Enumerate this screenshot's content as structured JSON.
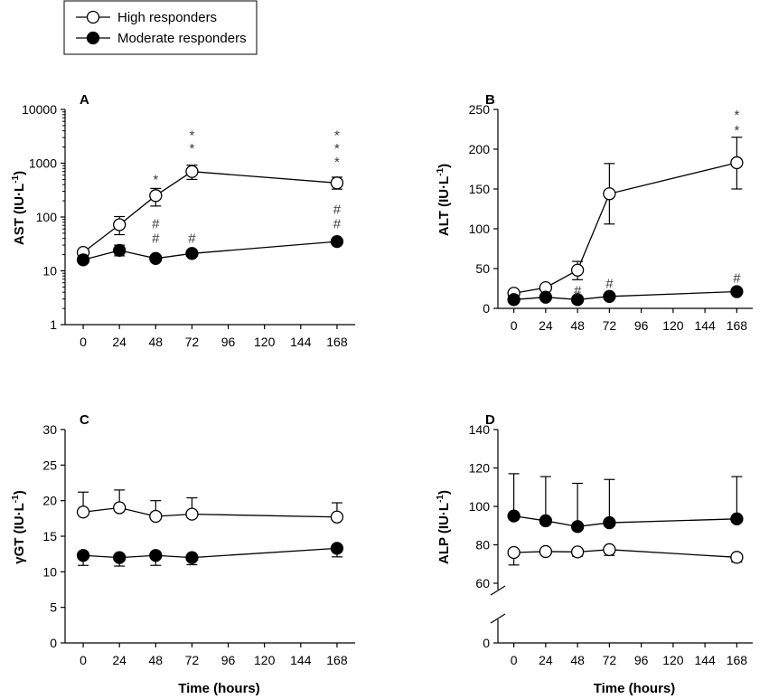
{
  "legend": {
    "high": "High responders",
    "moderate": "Moderate responders"
  },
  "chart_data": [
    {
      "panel": "A",
      "type": "line",
      "scale": "log",
      "ylabel": "AST (IU·L-1)",
      "ylabel_main": "AST (IU·L",
      "ylabel_sup": "-1",
      "ylabel_end": ")",
      "xlabel": "",
      "xlim": [
        -12,
        180
      ],
      "ylim": [
        1,
        10000
      ],
      "xticks": [
        0,
        24,
        48,
        72,
        96,
        120,
        144,
        168
      ],
      "yticks": [
        1,
        10,
        100,
        1000,
        10000
      ],
      "series": [
        {
          "name": "High responders",
          "filled": false,
          "x": [
            0,
            24,
            48,
            72,
            168
          ],
          "y": [
            22,
            72,
            250,
            700,
            430
          ],
          "err_hi": [
            2,
            30,
            90,
            220,
            120
          ],
          "err_lo": [
            0,
            25,
            90,
            200,
            100
          ]
        },
        {
          "name": "Moderate responders",
          "filled": true,
          "x": [
            0,
            24,
            48,
            72,
            168
          ],
          "y": [
            16,
            24,
            17,
            21,
            35
          ],
          "err_hi": [
            0,
            6,
            0,
            0,
            0
          ],
          "err_lo": [
            0,
            5,
            0,
            0,
            0
          ]
        }
      ],
      "annotations": [
        {
          "x": 48,
          "text": "*",
          "y": 500
        },
        {
          "x": 72,
          "text": "*",
          "y": 3300
        },
        {
          "x": 72,
          "text": "*",
          "y": 1900
        },
        {
          "x": 168,
          "text": "*",
          "y": 3300
        },
        {
          "x": 168,
          "text": "*",
          "y": 1900
        },
        {
          "x": 168,
          "text": "*",
          "y": 1050
        },
        {
          "x": 48,
          "text": "#",
          "y": 75
        },
        {
          "x": 48,
          "text": "#",
          "y": 40
        },
        {
          "x": 72,
          "text": "#",
          "y": 40
        },
        {
          "x": 168,
          "text": "#",
          "y": 140
        },
        {
          "x": 168,
          "text": "#",
          "y": 75
        }
      ]
    },
    {
      "panel": "B",
      "type": "line",
      "scale": "linear",
      "ylabel": "ALT (IU·L-1)",
      "ylabel_main": "ALT (IU·L",
      "ylabel_sup": "-1",
      "ylabel_end": ")",
      "xlabel": "",
      "xlim": [
        -12,
        180
      ],
      "ylim": [
        0,
        250
      ],
      "xticks": [
        0,
        24,
        48,
        72,
        96,
        120,
        144,
        168
      ],
      "yticks": [
        0,
        50,
        100,
        150,
        200,
        250
      ],
      "series": [
        {
          "name": "High responders",
          "filled": false,
          "x": [
            0,
            24,
            48,
            72,
            168
          ],
          "y": [
            19,
            26,
            48,
            144,
            183
          ],
          "err_hi": [
            0,
            0,
            11,
            38,
            32
          ],
          "err_lo": [
            0,
            0,
            12,
            38,
            33
          ]
        },
        {
          "name": "Moderate responders",
          "filled": true,
          "x": [
            0,
            24,
            48,
            72,
            168
          ],
          "y": [
            11,
            14,
            11,
            15,
            21
          ],
          "err_hi": [
            0,
            0,
            0,
            0,
            2
          ],
          "err_lo": [
            0,
            0,
            0,
            0,
            0
          ]
        }
      ],
      "annotations": [
        {
          "x": 168,
          "text": "*",
          "y": 243
        },
        {
          "x": 168,
          "text": "*",
          "y": 224
        },
        {
          "x": 48,
          "text": "#",
          "y": 22
        },
        {
          "x": 72,
          "text": "#",
          "y": 31
        },
        {
          "x": 168,
          "text": "#",
          "y": 38
        }
      ]
    },
    {
      "panel": "C",
      "type": "line",
      "scale": "linear",
      "ylabel": "γGT (IU·L-1)",
      "ylabel_main": "γGT (IU·L",
      "ylabel_sup": "-1",
      "ylabel_end": ")",
      "xlabel": "Time (hours)",
      "xlim": [
        -12,
        180
      ],
      "ylim": [
        0,
        30
      ],
      "xticks": [
        0,
        24,
        48,
        72,
        96,
        120,
        144,
        168
      ],
      "yticks": [
        0,
        5,
        10,
        15,
        20,
        25,
        30
      ],
      "series": [
        {
          "name": "High responders",
          "filled": false,
          "x": [
            0,
            24,
            48,
            72,
            168
          ],
          "y": [
            18.4,
            19.0,
            17.8,
            18.1,
            17.7
          ],
          "err_hi": [
            2.8,
            2.5,
            2.2,
            2.3,
            2.0
          ],
          "err_lo": [
            0,
            0,
            0,
            0,
            0
          ]
        },
        {
          "name": "Moderate responders",
          "filled": true,
          "x": [
            0,
            24,
            48,
            72,
            168
          ],
          "y": [
            12.3,
            12.0,
            12.3,
            12.0,
            13.3
          ],
          "err_hi": [
            0,
            0,
            0,
            0,
            0
          ],
          "err_lo": [
            1.4,
            1.2,
            1.4,
            1.0,
            1.2
          ]
        }
      ],
      "annotations": []
    },
    {
      "panel": "D",
      "type": "line",
      "scale": "broken",
      "ylabel": "ALP (IU·L-1)",
      "ylabel_main": "ALP (IU·L",
      "ylabel_sup": "-1",
      "ylabel_end": ")",
      "xlabel": "Time (hours)",
      "xlim": [
        -12,
        180
      ],
      "ylim": [
        50,
        140
      ],
      "xticks": [
        0,
        24,
        48,
        72,
        96,
        120,
        144,
        168
      ],
      "yticks": [
        60,
        80,
        100,
        120,
        140
      ],
      "ytick_zero": 0,
      "series": [
        {
          "name": "High responders",
          "filled": false,
          "x": [
            0,
            24,
            48,
            72,
            168
          ],
          "y": [
            76,
            76.5,
            76.3,
            77.5,
            73.5
          ],
          "err_hi": [
            0,
            0,
            0,
            0,
            0
          ],
          "err_lo": [
            6.5,
            1.5,
            2.3,
            3,
            2.5
          ]
        },
        {
          "name": "Moderate responders",
          "filled": true,
          "x": [
            0,
            24,
            48,
            72,
            168
          ],
          "y": [
            95,
            92.5,
            89.5,
            91.5,
            93.5
          ],
          "err_hi": [
            22,
            23,
            22.5,
            22.5,
            22
          ],
          "err_lo": [
            0,
            0,
            0,
            0,
            0
          ]
        }
      ],
      "annotations": []
    }
  ]
}
